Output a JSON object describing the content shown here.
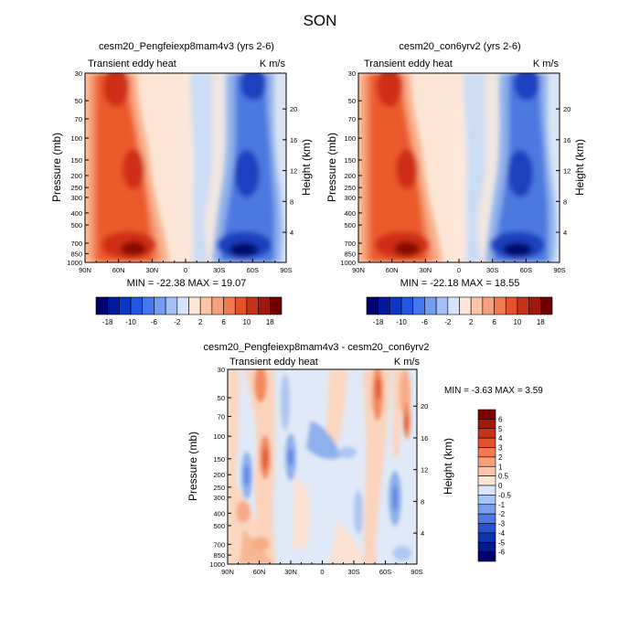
{
  "figure": {
    "title": "SON"
  },
  "pressure_ticks": [
    "30",
    "50",
    "70",
    "100",
    "150",
    "200",
    "250",
    "300",
    "400",
    "500",
    "700",
    "850",
    "1000"
  ],
  "pressure_values": [
    30,
    50,
    70,
    100,
    150,
    200,
    250,
    300,
    400,
    500,
    700,
    850,
    1000
  ],
  "height_ticks": [
    "20",
    "16",
    "12",
    "8",
    "4"
  ],
  "height_values": [
    20,
    16,
    12,
    8,
    4
  ],
  "lat_ticks": [
    "90N",
    "60N",
    "30N",
    "0",
    "30S",
    "60S",
    "90S"
  ],
  "colors": {
    "blue_dark": "#00007a",
    "blue": "#1f4fd6",
    "blue_mid": "#5b8ae6",
    "blue_light": "#c9dcf5",
    "red_dark": "#7f0000",
    "red": "#e8481a",
    "red_mid": "#f48b5b",
    "red_light": "#fde3d2"
  },
  "chart_data": [
    {
      "type": "heatmap",
      "title": "cesm20_Pengfeiexp8mam4v3 (yrs 2-6)",
      "left_label": "Transient eddy heat",
      "right_label": "K m/s",
      "xlabel": "",
      "ylabel": "Pressure (mb)",
      "y2label": "Height (km)",
      "xlim": [
        "90N",
        "90S"
      ],
      "ylim": [
        1000,
        30
      ],
      "stats_text": "MIN = -22.38   MAX =  19.07",
      "colorbar_levels": [
        "-18",
        "-10",
        "-6",
        "-2",
        "2",
        "6",
        "10",
        "18"
      ]
    },
    {
      "type": "heatmap",
      "title": "cesm20_con6yrv2 (yrs 2-6)",
      "left_label": "Transient eddy heat",
      "right_label": "K m/s",
      "xlabel": "",
      "ylabel": "Pressure (mb)",
      "y2label": "Height (km)",
      "xlim": [
        "90N",
        "90S"
      ],
      "ylim": [
        1000,
        30
      ],
      "stats_text": "MIN = -22.18   MAX =  18.55",
      "colorbar_levels": [
        "-18",
        "-10",
        "-6",
        "-2",
        "2",
        "6",
        "10",
        "18"
      ]
    },
    {
      "type": "heatmap",
      "title": "cesm20_Pengfeiexp8mam4v3 - cesm20_con6yrv2",
      "left_label": "Transient eddy heat",
      "right_label": "K m/s",
      "xlabel": "",
      "ylabel": "Pressure (mb)",
      "y2label": "Height (km)",
      "xlim": [
        "90N",
        "90S"
      ],
      "ylim": [
        1000,
        30
      ],
      "stats_text": "MIN =  -3.63   MAX =    3.59",
      "colorbar_levels": [
        "6",
        "5",
        "4",
        "3",
        "2",
        "1",
        "0.5",
        "0",
        "-0.5",
        "-1",
        "-2",
        "-3",
        "-4",
        "-5",
        "-6"
      ]
    }
  ]
}
